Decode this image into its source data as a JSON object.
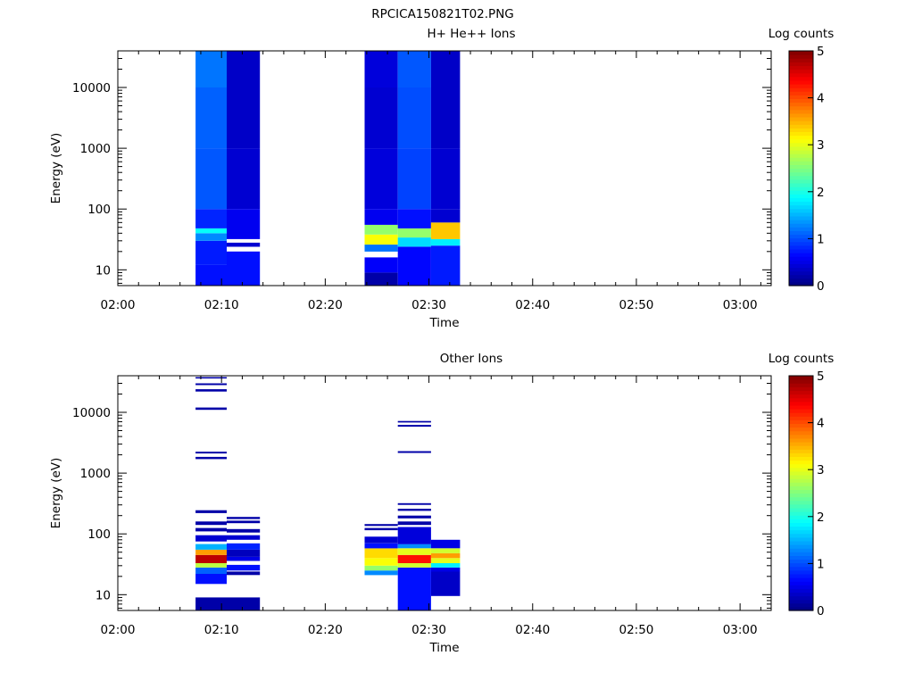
{
  "figure_title": "RPCICA150821T02.PNG",
  "chart_data": [
    {
      "type": "heatmap",
      "title": "H+ He++ Ions",
      "xlabel": "Time",
      "ylabel": "Energy (eV)",
      "x_ticks": [
        "02:00",
        "02:10",
        "02:20",
        "02:30",
        "02:40",
        "02:50",
        "03:00"
      ],
      "x_range": [
        "02:00",
        "03:03"
      ],
      "y_scale": "log",
      "y_ticks": [
        10,
        100,
        1000,
        10000
      ],
      "y_tick_labels": [
        "10",
        "100",
        "1000",
        "10000"
      ],
      "ylim": [
        5.5,
        40000
      ],
      "colorbar": {
        "label": "Log counts",
        "range": [
          0,
          5
        ],
        "ticks": [
          "0",
          "1",
          "2",
          "3",
          "4",
          "5"
        ]
      },
      "columns": [
        {
          "start": "02:07.5",
          "end": "02:10.5",
          "segments": [
            {
              "e_low": 5.5,
              "e_high": 12,
              "value": 0.7
            },
            {
              "e_low": 12,
              "e_high": 30,
              "value": 0.75
            },
            {
              "e_low": 30,
              "e_high": 40,
              "value": 1.3
            },
            {
              "e_low": 40,
              "e_high": 48,
              "value": 1.9
            },
            {
              "e_low": 48,
              "e_high": 100,
              "value": 0.8
            },
            {
              "e_low": 100,
              "e_high": 1000,
              "value": 1.05
            },
            {
              "e_low": 1000,
              "e_high": 10000,
              "value": 1.1
            },
            {
              "e_low": 10000,
              "e_high": 40000,
              "value": 1.2
            }
          ]
        },
        {
          "start": "02:10.5",
          "end": "02:13.7",
          "segments": [
            {
              "e_low": 5.5,
              "e_high": 20,
              "value": 0.7
            },
            {
              "e_low": 24,
              "e_high": 28,
              "value": 0.4
            },
            {
              "e_low": 32,
              "e_high": 100,
              "value": 0.55
            },
            {
              "e_low": 100,
              "e_high": 1000,
              "value": 0.4
            },
            {
              "e_low": 1000,
              "e_high": 10000,
              "value": 0.35
            },
            {
              "e_low": 10000,
              "e_high": 40000,
              "value": 0.35
            }
          ]
        },
        {
          "start": "02:23.8",
          "end": "02:27.0",
          "segments": [
            {
              "e_low": 5.5,
              "e_high": 9,
              "value": 0.2
            },
            {
              "e_low": 9,
              "e_high": 16,
              "value": 0.6
            },
            {
              "e_low": 20,
              "e_high": 26,
              "value": 1.2
            },
            {
              "e_low": 26,
              "e_high": 38,
              "value": 3.1
            },
            {
              "e_low": 38,
              "e_high": 55,
              "value": 2.6
            },
            {
              "e_low": 55,
              "e_high": 100,
              "value": 0.55
            },
            {
              "e_low": 100,
              "e_high": 1000,
              "value": 0.45
            },
            {
              "e_low": 1000,
              "e_high": 10000,
              "value": 0.4
            },
            {
              "e_low": 10000,
              "e_high": 40000,
              "value": 0.45
            }
          ]
        },
        {
          "start": "02:27.0",
          "end": "02:30.2",
          "segments": [
            {
              "e_low": 5.5,
              "e_high": 24,
              "value": 0.65
            },
            {
              "e_low": 24,
              "e_high": 34,
              "value": 1.7
            },
            {
              "e_low": 34,
              "e_high": 48,
              "value": 2.6
            },
            {
              "e_low": 48,
              "e_high": 100,
              "value": 0.7
            },
            {
              "e_low": 100,
              "e_high": 1000,
              "value": 0.95
            },
            {
              "e_low": 1000,
              "e_high": 10000,
              "value": 1.0
            },
            {
              "e_low": 10000,
              "e_high": 40000,
              "value": 1.05
            }
          ]
        },
        {
          "start": "02:30.2",
          "end": "02:33.0",
          "segments": [
            {
              "e_low": 5.5,
              "e_high": 25,
              "value": 0.75
            },
            {
              "e_low": 25,
              "e_high": 32,
              "value": 1.8
            },
            {
              "e_low": 32,
              "e_high": 60,
              "value": 3.4
            },
            {
              "e_low": 60,
              "e_high": 100,
              "value": 0.4
            },
            {
              "e_low": 100,
              "e_high": 1000,
              "value": 0.4
            },
            {
              "e_low": 1000,
              "e_high": 10000,
              "value": 0.35
            },
            {
              "e_low": 10000,
              "e_high": 40000,
              "value": 0.35
            }
          ]
        }
      ]
    },
    {
      "type": "heatmap",
      "title": "Other Ions",
      "xlabel": "Time",
      "ylabel": "Energy (eV)",
      "x_ticks": [
        "02:00",
        "02:10",
        "02:20",
        "02:30",
        "02:40",
        "02:50",
        "03:00"
      ],
      "x_range": [
        "02:00",
        "03:03"
      ],
      "y_scale": "log",
      "y_ticks": [
        10,
        100,
        1000,
        10000
      ],
      "y_tick_labels": [
        "10",
        "100",
        "1000",
        "10000"
      ],
      "ylim": [
        5.5,
        40000
      ],
      "colorbar": {
        "label": "Log counts",
        "range": [
          0,
          5
        ],
        "ticks": [
          "0",
          "1",
          "2",
          "3",
          "4",
          "5"
        ]
      },
      "columns": [
        {
          "start": "02:07.5",
          "end": "02:10.5",
          "segments": [
            {
              "e_low": 5.5,
              "e_high": 9,
              "value": 0.2
            },
            {
              "e_low": 15,
              "e_high": 22,
              "value": 0.7
            },
            {
              "e_low": 22,
              "e_high": 28,
              "value": 1.1
            },
            {
              "e_low": 28,
              "e_high": 33,
              "value": 2.8
            },
            {
              "e_low": 33,
              "e_high": 45,
              "value": 4.7
            },
            {
              "e_low": 45,
              "e_high": 55,
              "value": 3.6
            },
            {
              "e_low": 55,
              "e_high": 68,
              "value": 1.5
            },
            {
              "e_low": 75,
              "e_high": 95,
              "value": 0.4
            },
            {
              "e_low": 110,
              "e_high": 125,
              "value": 0.2
            },
            {
              "e_low": 140,
              "e_high": 160,
              "value": 0.2
            },
            {
              "e_low": 220,
              "e_high": 245,
              "value": 0.2
            },
            {
              "e_low": 1700,
              "e_high": 1850,
              "value": 0.2
            },
            {
              "e_low": 2100,
              "e_high": 2250,
              "value": 0.2
            },
            {
              "e_low": 11000,
              "e_high": 12000,
              "value": 0.2
            },
            {
              "e_low": 22000,
              "e_high": 24000,
              "value": 0.2
            },
            {
              "e_low": 28000,
              "e_high": 30000,
              "value": 0.2
            },
            {
              "e_low": 36000,
              "e_high": 38000,
              "value": 0.2
            }
          ]
        },
        {
          "start": "02:10.5",
          "end": "02:13.7",
          "segments": [
            {
              "e_low": 5.5,
              "e_high": 9,
              "value": 0.2
            },
            {
              "e_low": 21,
              "e_high": 24,
              "value": 0.2
            },
            {
              "e_low": 25,
              "e_high": 31,
              "value": 0.7
            },
            {
              "e_low": 36,
              "e_high": 42,
              "value": 0.5
            },
            {
              "e_low": 42,
              "e_high": 55,
              "value": 0.3
            },
            {
              "e_low": 55,
              "e_high": 70,
              "value": 0.8
            },
            {
              "e_low": 80,
              "e_high": 95,
              "value": 0.4
            },
            {
              "e_low": 105,
              "e_high": 120,
              "value": 0.2
            },
            {
              "e_low": 150,
              "e_high": 165,
              "value": 0.2
            },
            {
              "e_low": 175,
              "e_high": 190,
              "value": 0.2
            }
          ]
        },
        {
          "start": "02:23.8",
          "end": "02:27.0",
          "segments": [
            {
              "e_low": 21,
              "e_high": 25,
              "value": 1.3
            },
            {
              "e_low": 25,
              "e_high": 30,
              "value": 2.6
            },
            {
              "e_low": 30,
              "e_high": 40,
              "value": 3.1
            },
            {
              "e_low": 40,
              "e_high": 58,
              "value": 3.3
            },
            {
              "e_low": 58,
              "e_high": 70,
              "value": 0.7
            },
            {
              "e_low": 70,
              "e_high": 90,
              "value": 0.4
            },
            {
              "e_low": 115,
              "e_high": 125,
              "value": 0.2
            },
            {
              "e_low": 135,
              "e_high": 145,
              "value": 0.2
            }
          ]
        },
        {
          "start": "02:27.0",
          "end": "02:30.2",
          "segments": [
            {
              "e_low": 5.5,
              "e_high": 28,
              "value": 0.7
            },
            {
              "e_low": 28,
              "e_high": 33,
              "value": 2.9
            },
            {
              "e_low": 33,
              "e_high": 45,
              "value": 4.3
            },
            {
              "e_low": 45,
              "e_high": 58,
              "value": 3.0
            },
            {
              "e_low": 58,
              "e_high": 68,
              "value": 1.3
            },
            {
              "e_low": 68,
              "e_high": 130,
              "value": 0.45
            },
            {
              "e_low": 140,
              "e_high": 160,
              "value": 0.2
            },
            {
              "e_low": 180,
              "e_high": 200,
              "value": 0.2
            },
            {
              "e_low": 240,
              "e_high": 260,
              "value": 0.2
            },
            {
              "e_low": 300,
              "e_high": 320,
              "value": 0.2
            },
            {
              "e_low": 2150,
              "e_high": 2300,
              "value": 0.2
            },
            {
              "e_low": 5800,
              "e_high": 6200,
              "value": 0.2
            },
            {
              "e_low": 6800,
              "e_high": 7200,
              "value": 0.2
            }
          ]
        },
        {
          "start": "02:30.2",
          "end": "02:33.0",
          "segments": [
            {
              "e_low": 9.5,
              "e_high": 24,
              "value": 0.35
            },
            {
              "e_low": 24,
              "e_high": 28,
              "value": 0.5
            },
            {
              "e_low": 28,
              "e_high": 33,
              "value": 1.8
            },
            {
              "e_low": 33,
              "e_high": 40,
              "value": 3.0
            },
            {
              "e_low": 40,
              "e_high": 48,
              "value": 3.6
            },
            {
              "e_low": 48,
              "e_high": 58,
              "value": 2.9
            },
            {
              "e_low": 58,
              "e_high": 80,
              "value": 0.5
            }
          ]
        }
      ]
    }
  ]
}
